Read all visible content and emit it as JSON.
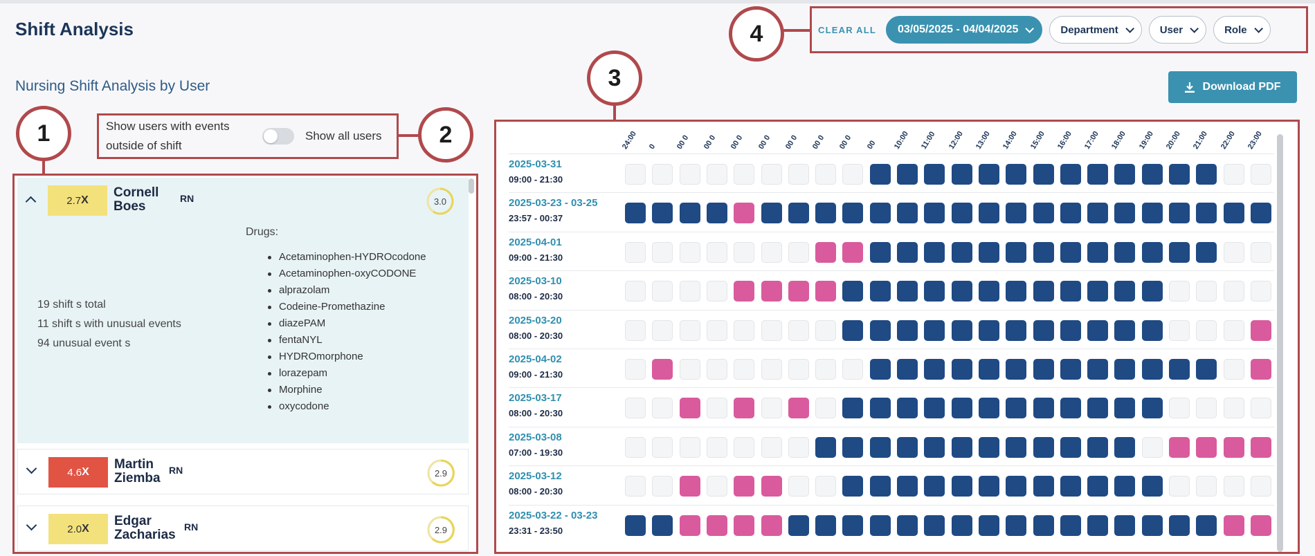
{
  "page": {
    "title": "Shift Analysis",
    "subtitle": "Nursing Shift Analysis by User"
  },
  "filters": {
    "clear_all": "CLEAR ALL",
    "date_range": "03/05/2025 - 04/04/2025",
    "department": "Department",
    "user": "User",
    "role": "Role"
  },
  "download": {
    "label": "Download PDF"
  },
  "markers": [
    "1",
    "2",
    "3",
    "4"
  ],
  "toggle": {
    "label": "Show users with events outside of shift",
    "right_label": "Show all users",
    "on": false
  },
  "users": [
    {
      "name_first": "Cornell",
      "name_last": "Boes",
      "role": "RN",
      "ratio": "2.7",
      "ratio_suffix": "X",
      "ratio_color": "#f3e17c",
      "score": "3.0",
      "expanded": true,
      "drugs_title": "Drugs:",
      "drugs": [
        "Acetaminophen-HYDROcodone",
        "Acetaminophen-oxyCODONE",
        "alprazolam",
        "Codeine-Promethazine",
        "diazePAM",
        "fentaNYL",
        "HYDROmorphone",
        "lorazepam",
        "Morphine",
        "oxycodone"
      ],
      "stats": [
        "19 shift s total",
        "11 shift s with unusual events",
        "94 unusual event s"
      ]
    },
    {
      "name_first": "Martin",
      "name_last": "Ziemba",
      "role": "RN",
      "ratio": "4.6",
      "ratio_suffix": "X",
      "ratio_color": "#e15443",
      "score": "2.9",
      "expanded": false
    },
    {
      "name_first": "Edgar",
      "name_last": "Zacharias",
      "role": "RN",
      "ratio": "2.0",
      "ratio_suffix": "X",
      "ratio_color": "#f3e17c",
      "score": "2.9",
      "expanded": false
    }
  ],
  "heatmap": {
    "hours": [
      "24:00",
      "0",
      "00 0",
      "00 0",
      "00 0",
      "00 0",
      "00 0",
      "00 0",
      "00 0",
      "00",
      "10:00",
      "11:00",
      "12:00",
      "13:00",
      "14:00",
      "15:00",
      "16:00",
      "17:00",
      "18:00",
      "19:00",
      "20:00",
      "21:00",
      "22:00",
      "23:00"
    ],
    "colors": {
      "on": "#1f4a84",
      "alert": "#d95b9e",
      "off": "#f4f5f6"
    },
    "rows": [
      {
        "date": "2025-03-31",
        "time": "09:00 - 21:30",
        "cells": "000000000OOOOOOOOOOOOO00"
      },
      {
        "date": "2025-03-23 - 03-25",
        "time": "23:57 - 00:37",
        "cells": "OOOOAOOOOOOOOOOOOOOOOOOO"
      },
      {
        "date": "2025-04-01",
        "time": "09:00 - 21:30",
        "cells": "0000000AAOOOOOOOOOOOOO00"
      },
      {
        "date": "2025-03-10",
        "time": "08:00 - 20:30",
        "cells": "0000AAAAOOOOOOOOOOOO0000"
      },
      {
        "date": "2025-03-20",
        "time": "08:00 - 20:30",
        "cells": "00000000OOOOOOOOOOOO000A"
      },
      {
        "date": "2025-04-02",
        "time": "09:00 - 21:30",
        "cells": "0A0000000OOOOOOOOOOOOO0A"
      },
      {
        "date": "2025-03-17",
        "time": "08:00 - 20:30",
        "cells": "00A0A0A0OOOOOOOOOOOO0000"
      },
      {
        "date": "2025-03-08",
        "time": "07:00 - 19:30",
        "cells": "0000000OOOOOOOOOOOO0AAAA"
      },
      {
        "date": "2025-03-12",
        "time": "08:00 - 20:30",
        "cells": "00A0AA00OOOOOOOOOOOO0000"
      },
      {
        "date": "2025-03-22 - 03-23",
        "time": "23:31 - 23:50",
        "cells": "OOAAAAOOOOOOOOOOOOOOOOAA"
      }
    ]
  }
}
